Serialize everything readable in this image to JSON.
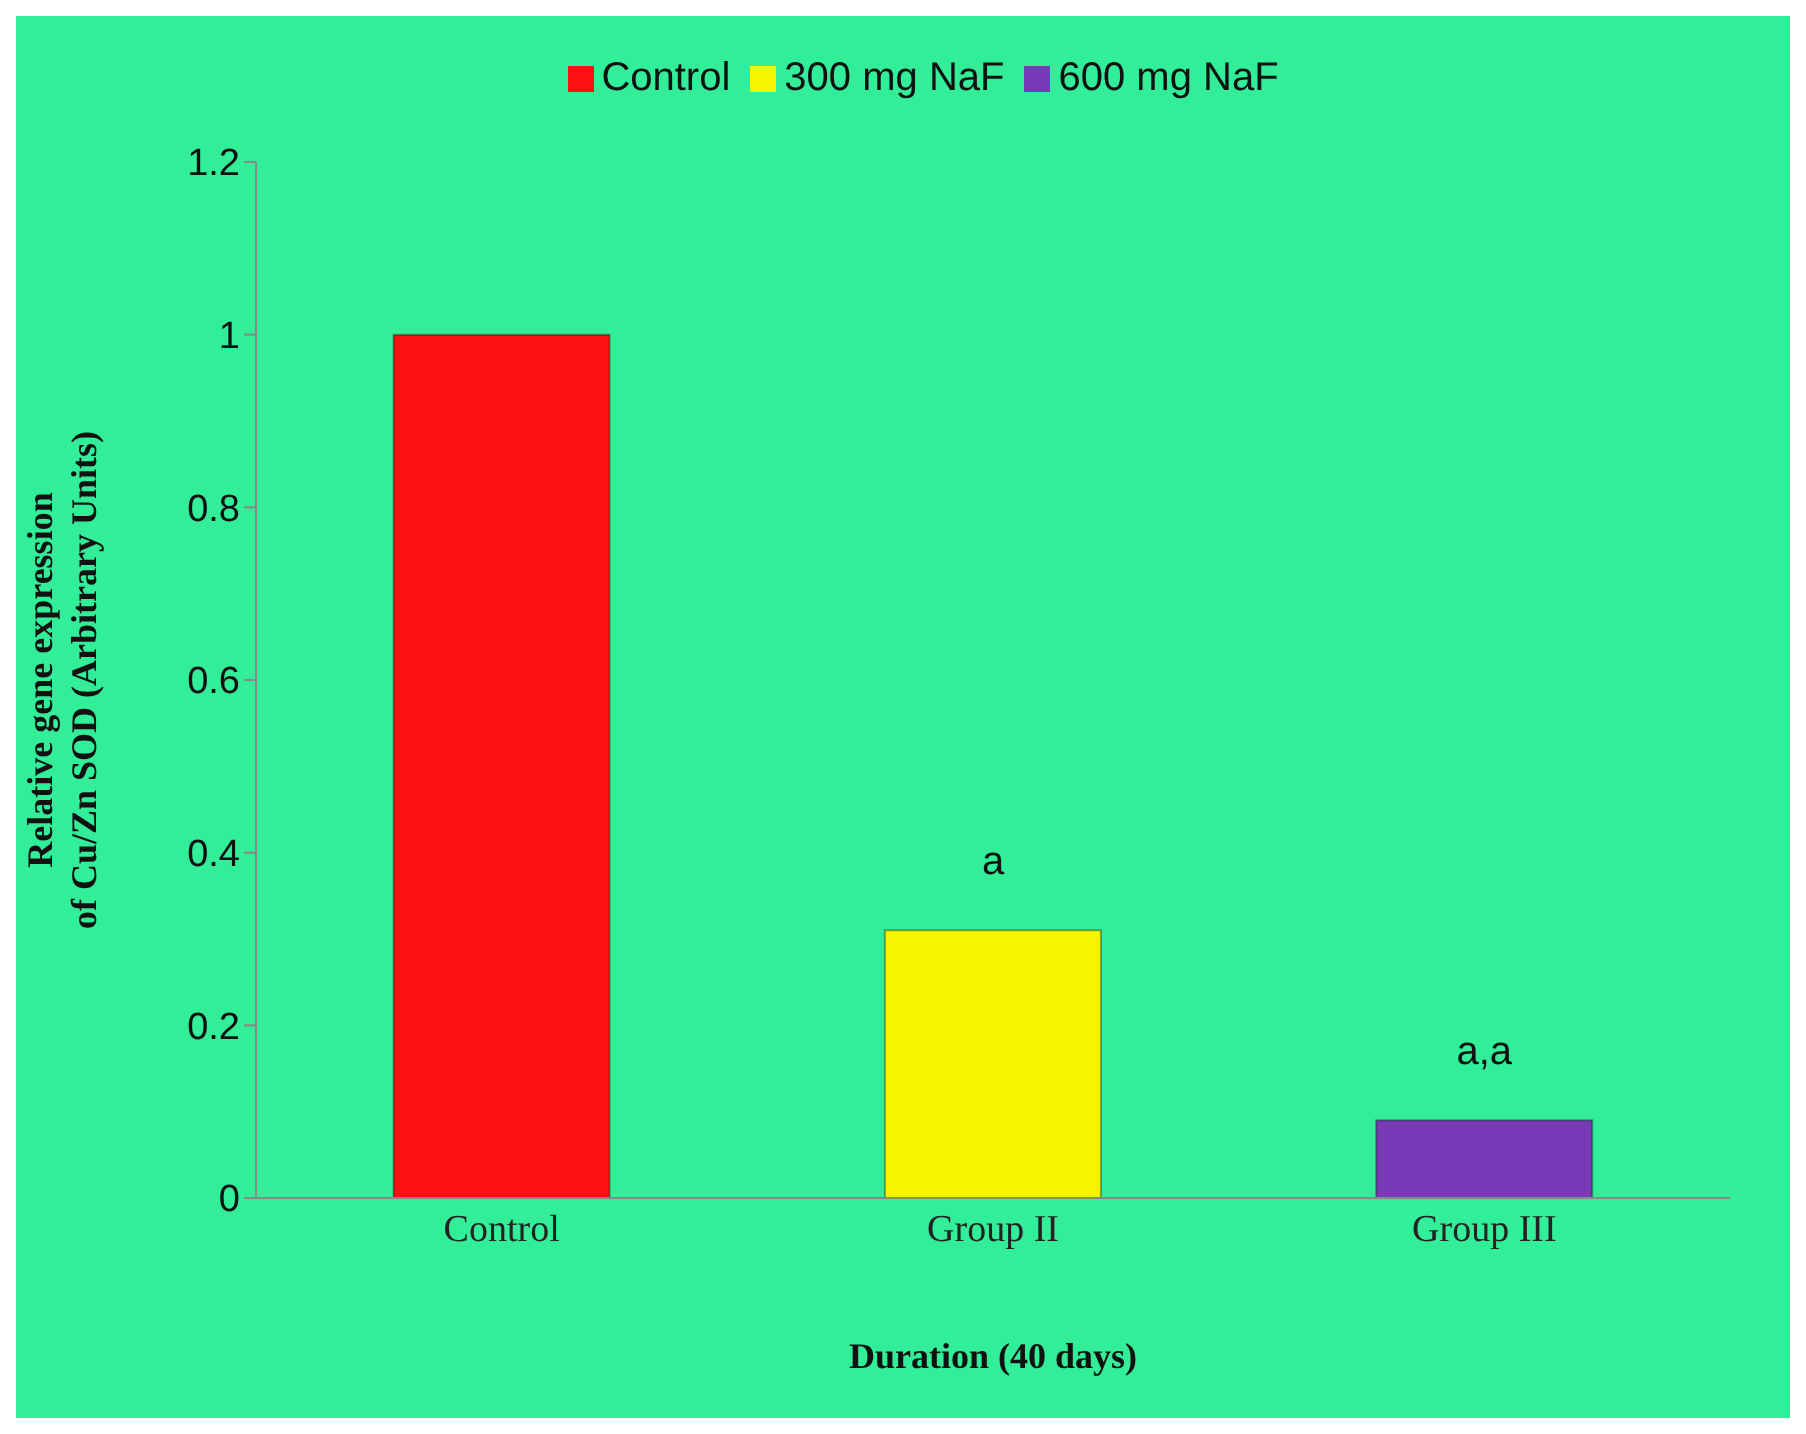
{
  "chart_data": {
    "type": "bar",
    "categories": [
      "Control",
      "Group II",
      "Group III"
    ],
    "series": [
      {
        "name": "Control",
        "color": "#ff1010",
        "values": [
          1.0,
          null,
          null
        ]
      },
      {
        "name": "300 mg NaF",
        "color": "#f5f500",
        "values": [
          null,
          0.31,
          null
        ]
      },
      {
        "name": "600 mg NaF",
        "color": "#7a3ab8",
        "values": [
          null,
          null,
          0.09
        ]
      }
    ],
    "xlabel": "Duration (40 days)",
    "ylabel": "Relative gene expression of Cu/Zn SOD (Arbitrary Units)",
    "ylim": [
      0,
      1.2
    ],
    "yticks": [
      0,
      0.2,
      0.4,
      0.6,
      0.8,
      1,
      1.2
    ],
    "legend": "top",
    "annotations": [
      {
        "text": "a",
        "x": "Group II",
        "y": 0.31
      },
      {
        "text": "a,a",
        "x": "Group III",
        "y": 0.09
      }
    ]
  }
}
